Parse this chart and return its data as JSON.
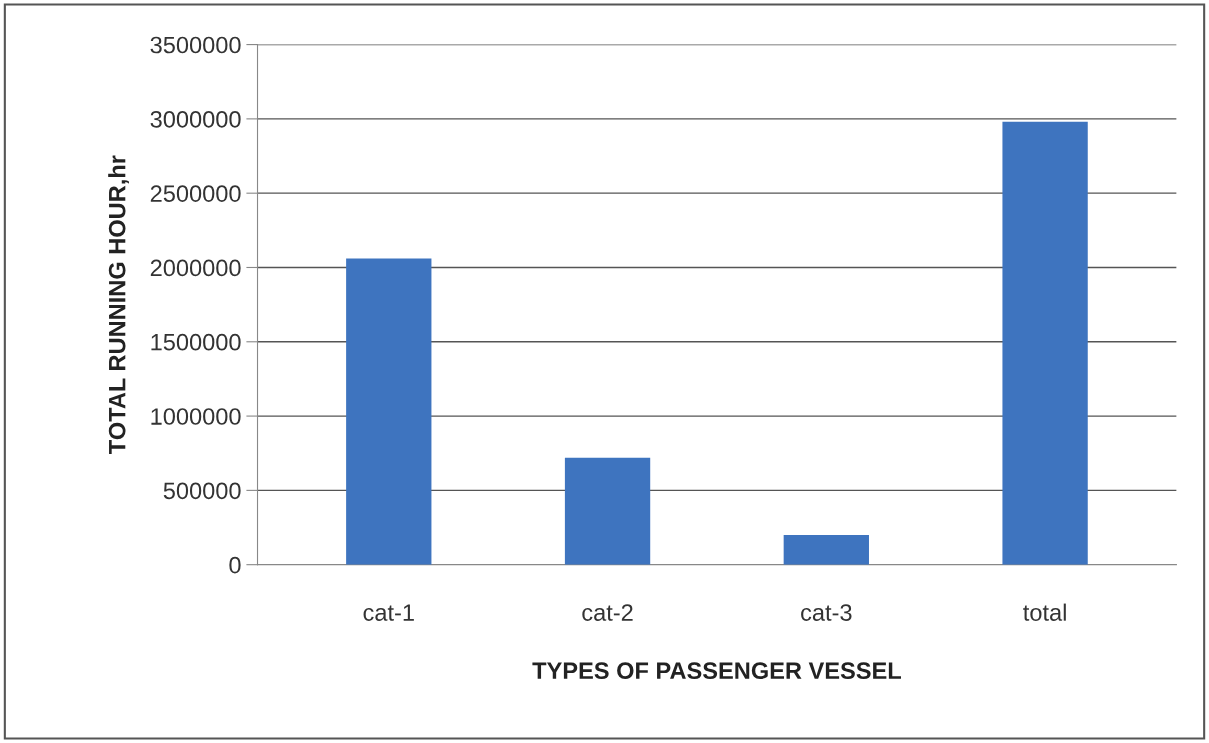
{
  "chart_data": {
    "type": "bar",
    "xlabel": "TYPES OF PASSENGER VESSEL",
    "ylabel": "TOTAL RUNNING HOUR,hr",
    "categories": [
      "cat-1",
      "cat-2",
      "cat-3",
      "total"
    ],
    "values": [
      2060000,
      720000,
      200000,
      2980000
    ],
    "color": "#3e74bf",
    "ylim": [
      0,
      3500000
    ],
    "yticks": [
      0,
      500000,
      1000000,
      1500000,
      2000000,
      2500000,
      3000000,
      3500000
    ],
    "grid": "y"
  }
}
